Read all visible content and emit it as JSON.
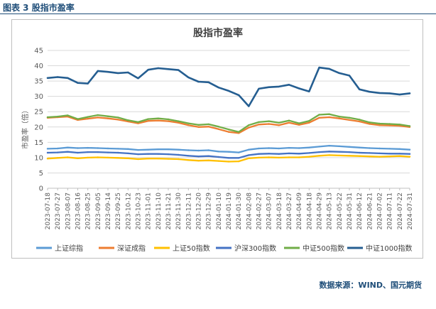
{
  "caption": "图表 3  股指市盈率",
  "source": "数据来源：WIND、国元期货",
  "chart_data": {
    "type": "line",
    "title": "股指市盈率",
    "ylabel": "市盈率（倍）",
    "ylim": [
      0,
      45
    ],
    "yticks": [
      0,
      5,
      10,
      15,
      20,
      25,
      30,
      35,
      40,
      45
    ],
    "grid": true,
    "legend_position": "bottom",
    "x_tick_labels": [
      "2023-07-18",
      "2023-07-27",
      "2023-08-07",
      "2023-08-16",
      "2023-08-25",
      "2023-09-05",
      "2023-09-14",
      "2023-09-25",
      "2023-10-12",
      "2023-10-23",
      "2023-11-01",
      "2023-11-10",
      "2023-11-21",
      "2023-11-30",
      "2023-12-11",
      "2023-12-20",
      "2023-12-29",
      "2024-01-10",
      "2024-01-19",
      "2024-01-30",
      "2024-02-08",
      "2024-02-27",
      "2024-03-07",
      "2024-03-18",
      "2024-03-27",
      "2024-04-09",
      "2024-04-18",
      "2024-04-29",
      "2024-05-13",
      "2024-05-22",
      "2024-05-31",
      "2024-06-12",
      "2024-06-21",
      "2024-07-02",
      "2024-07-11",
      "2024-07-22",
      "2024-07-31"
    ],
    "series": [
      {
        "name": "上证综指",
        "color": "#5b9bd5",
        "values": [
          12.9,
          13.0,
          13.3,
          13.1,
          13.2,
          13.1,
          13.0,
          12.9,
          12.8,
          12.5,
          12.6,
          12.7,
          12.7,
          12.6,
          12.4,
          12.3,
          12.4,
          12.0,
          11.9,
          11.7,
          12.6,
          13.0,
          13.1,
          13.0,
          13.2,
          13.1,
          13.3,
          13.6,
          13.9,
          13.7,
          13.5,
          13.3,
          13.1,
          13.0,
          12.9,
          12.8,
          12.6
        ]
      },
      {
        "name": "深证成指",
        "color": "#ed7d31",
        "values": [
          23.0,
          23.2,
          23.4,
          22.3,
          22.7,
          23.1,
          22.8,
          22.4,
          21.8,
          21.2,
          22.0,
          22.1,
          21.9,
          21.4,
          20.6,
          20.0,
          20.1,
          19.3,
          18.4,
          18.0,
          19.8,
          20.8,
          21.0,
          20.6,
          21.4,
          20.7,
          21.4,
          23.0,
          23.2,
          22.8,
          22.3,
          21.8,
          21.0,
          20.6,
          20.5,
          20.4,
          20.0
        ]
      },
      {
        "name": "上证50指数",
        "color": "#ffc000",
        "values": [
          9.7,
          9.9,
          10.1,
          9.8,
          10.0,
          10.1,
          10.0,
          9.9,
          9.8,
          9.5,
          9.7,
          9.7,
          9.6,
          9.5,
          9.2,
          9.0,
          9.1,
          8.9,
          8.7,
          8.8,
          9.8,
          10.0,
          10.1,
          10.0,
          10.1,
          10.1,
          10.3,
          10.6,
          10.8,
          10.7,
          10.6,
          10.5,
          10.4,
          10.3,
          10.4,
          10.5,
          10.3
        ]
      },
      {
        "name": "沪深300指数",
        "color": "#4472c4",
        "values": [
          11.6,
          11.7,
          11.9,
          11.6,
          11.8,
          11.8,
          11.7,
          11.6,
          11.4,
          11.1,
          11.2,
          11.2,
          11.1,
          10.9,
          10.6,
          10.4,
          10.5,
          10.2,
          9.9,
          9.9,
          10.8,
          11.2,
          11.3,
          11.2,
          11.4,
          11.3,
          11.5,
          11.8,
          12.0,
          11.9,
          11.8,
          11.6,
          11.5,
          11.4,
          11.3,
          11.3,
          11.2
        ]
      },
      {
        "name": "中证500指数",
        "color": "#70ad47",
        "values": [
          23.2,
          23.4,
          23.8,
          22.6,
          23.3,
          23.9,
          23.5,
          23.1,
          22.2,
          21.6,
          22.6,
          22.8,
          22.5,
          21.9,
          21.2,
          20.7,
          20.9,
          20.1,
          19.2,
          18.4,
          20.6,
          21.6,
          21.9,
          21.4,
          22.1,
          21.2,
          22.0,
          24.0,
          24.2,
          23.4,
          23.0,
          22.4,
          21.5,
          21.1,
          21.0,
          20.8,
          20.3
        ]
      },
      {
        "name": "中证1000指数",
        "color": "#255e91",
        "values": [
          36.0,
          36.3,
          36.0,
          34.4,
          34.2,
          38.3,
          38.0,
          37.6,
          37.8,
          35.9,
          38.7,
          39.2,
          38.9,
          38.6,
          36.2,
          34.8,
          34.6,
          32.9,
          31.8,
          30.4,
          26.8,
          32.5,
          33.0,
          33.2,
          33.8,
          32.6,
          31.6,
          39.4,
          39.0,
          37.6,
          36.8,
          32.3,
          31.5,
          31.1,
          31.0,
          30.6,
          31.0
        ]
      }
    ]
  }
}
